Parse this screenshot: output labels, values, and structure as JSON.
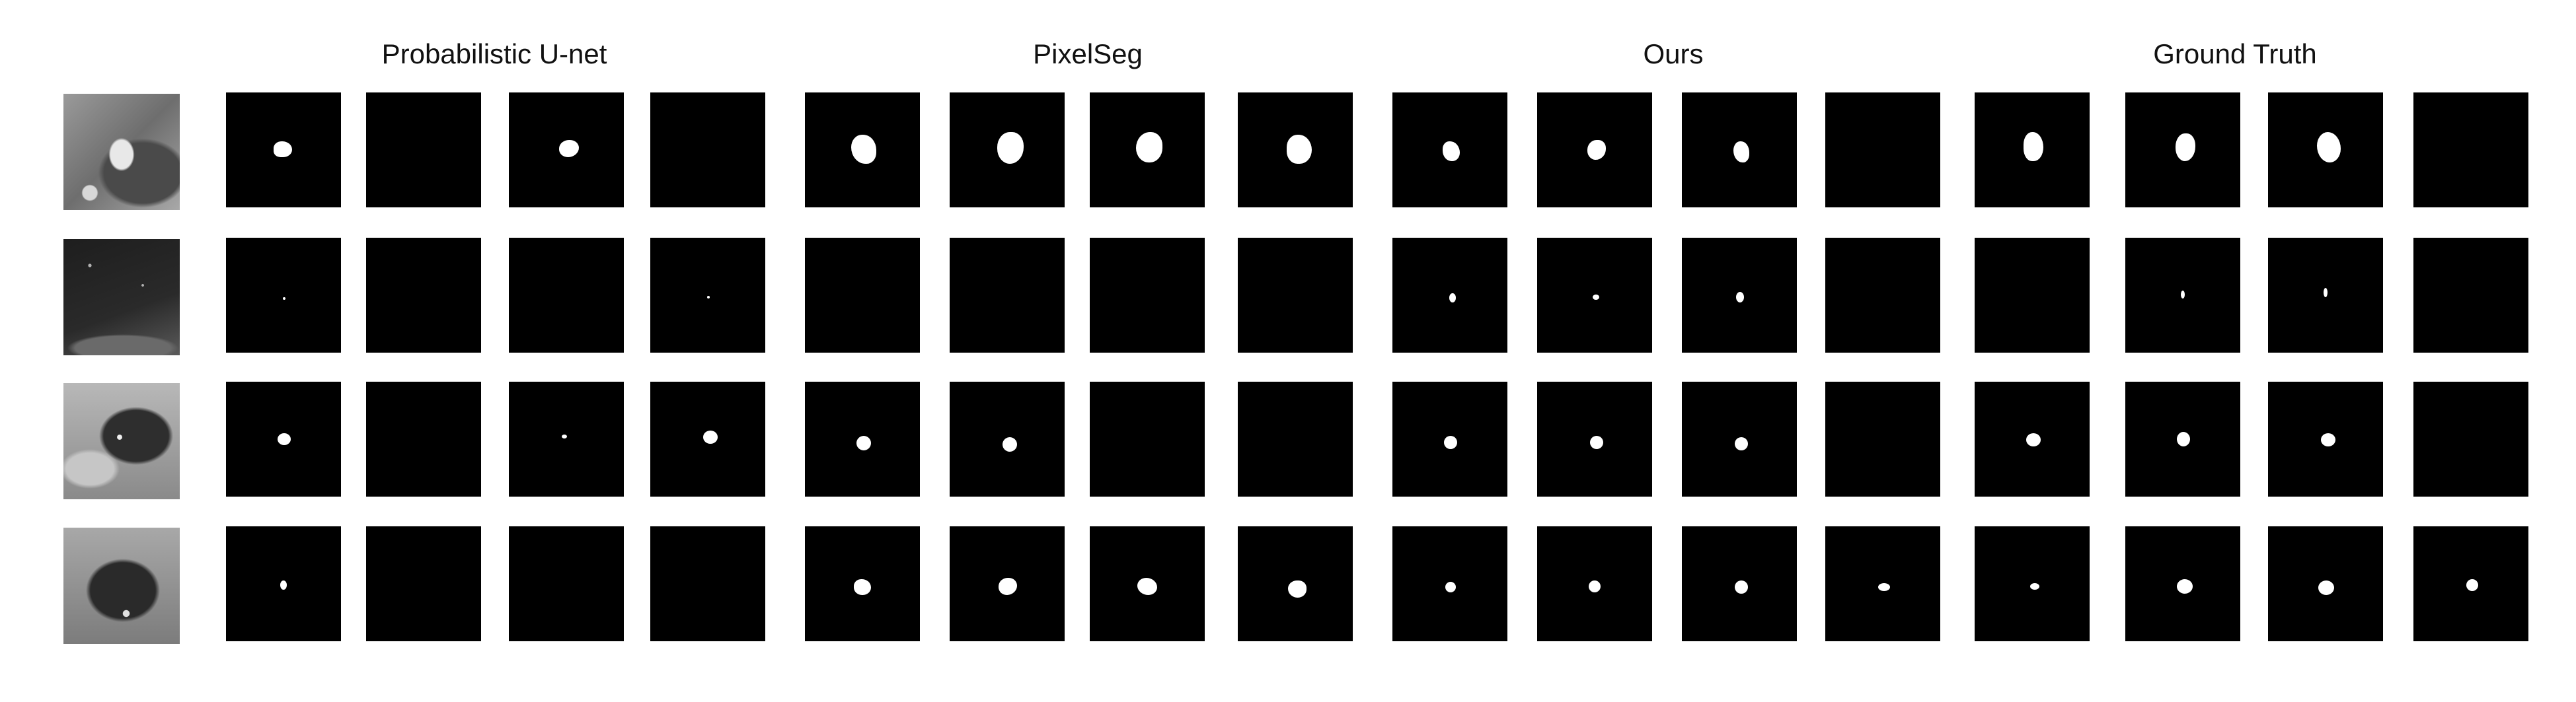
{
  "figure": {
    "method_titles": [
      "Probabilistic U-net",
      "PixelSeg",
      "Ours",
      "Ground Truth"
    ],
    "rows": [
      {
        "ct_image": "ct-scan-1",
        "lesion_present": [
          true,
          false,
          true,
          false,
          true,
          true,
          true,
          true,
          true,
          true,
          true,
          false,
          true,
          true,
          true,
          false
        ]
      },
      {
        "ct_image": "ct-scan-2",
        "lesion_present": [
          true,
          false,
          false,
          true,
          false,
          false,
          false,
          false,
          true,
          true,
          true,
          false,
          false,
          true,
          true,
          false
        ]
      },
      {
        "ct_image": "ct-scan-3",
        "lesion_present": [
          true,
          false,
          true,
          true,
          true,
          true,
          false,
          false,
          true,
          true,
          true,
          false,
          true,
          true,
          true,
          false
        ]
      },
      {
        "ct_image": "ct-scan-4",
        "lesion_present": [
          true,
          false,
          false,
          false,
          true,
          true,
          true,
          true,
          true,
          true,
          true,
          true,
          true,
          true,
          true,
          true
        ]
      }
    ],
    "colors": {
      "background": "#ffffff",
      "mask_background": "#000000",
      "lesion": "#ffffff",
      "title_text": "#111111"
    }
  }
}
